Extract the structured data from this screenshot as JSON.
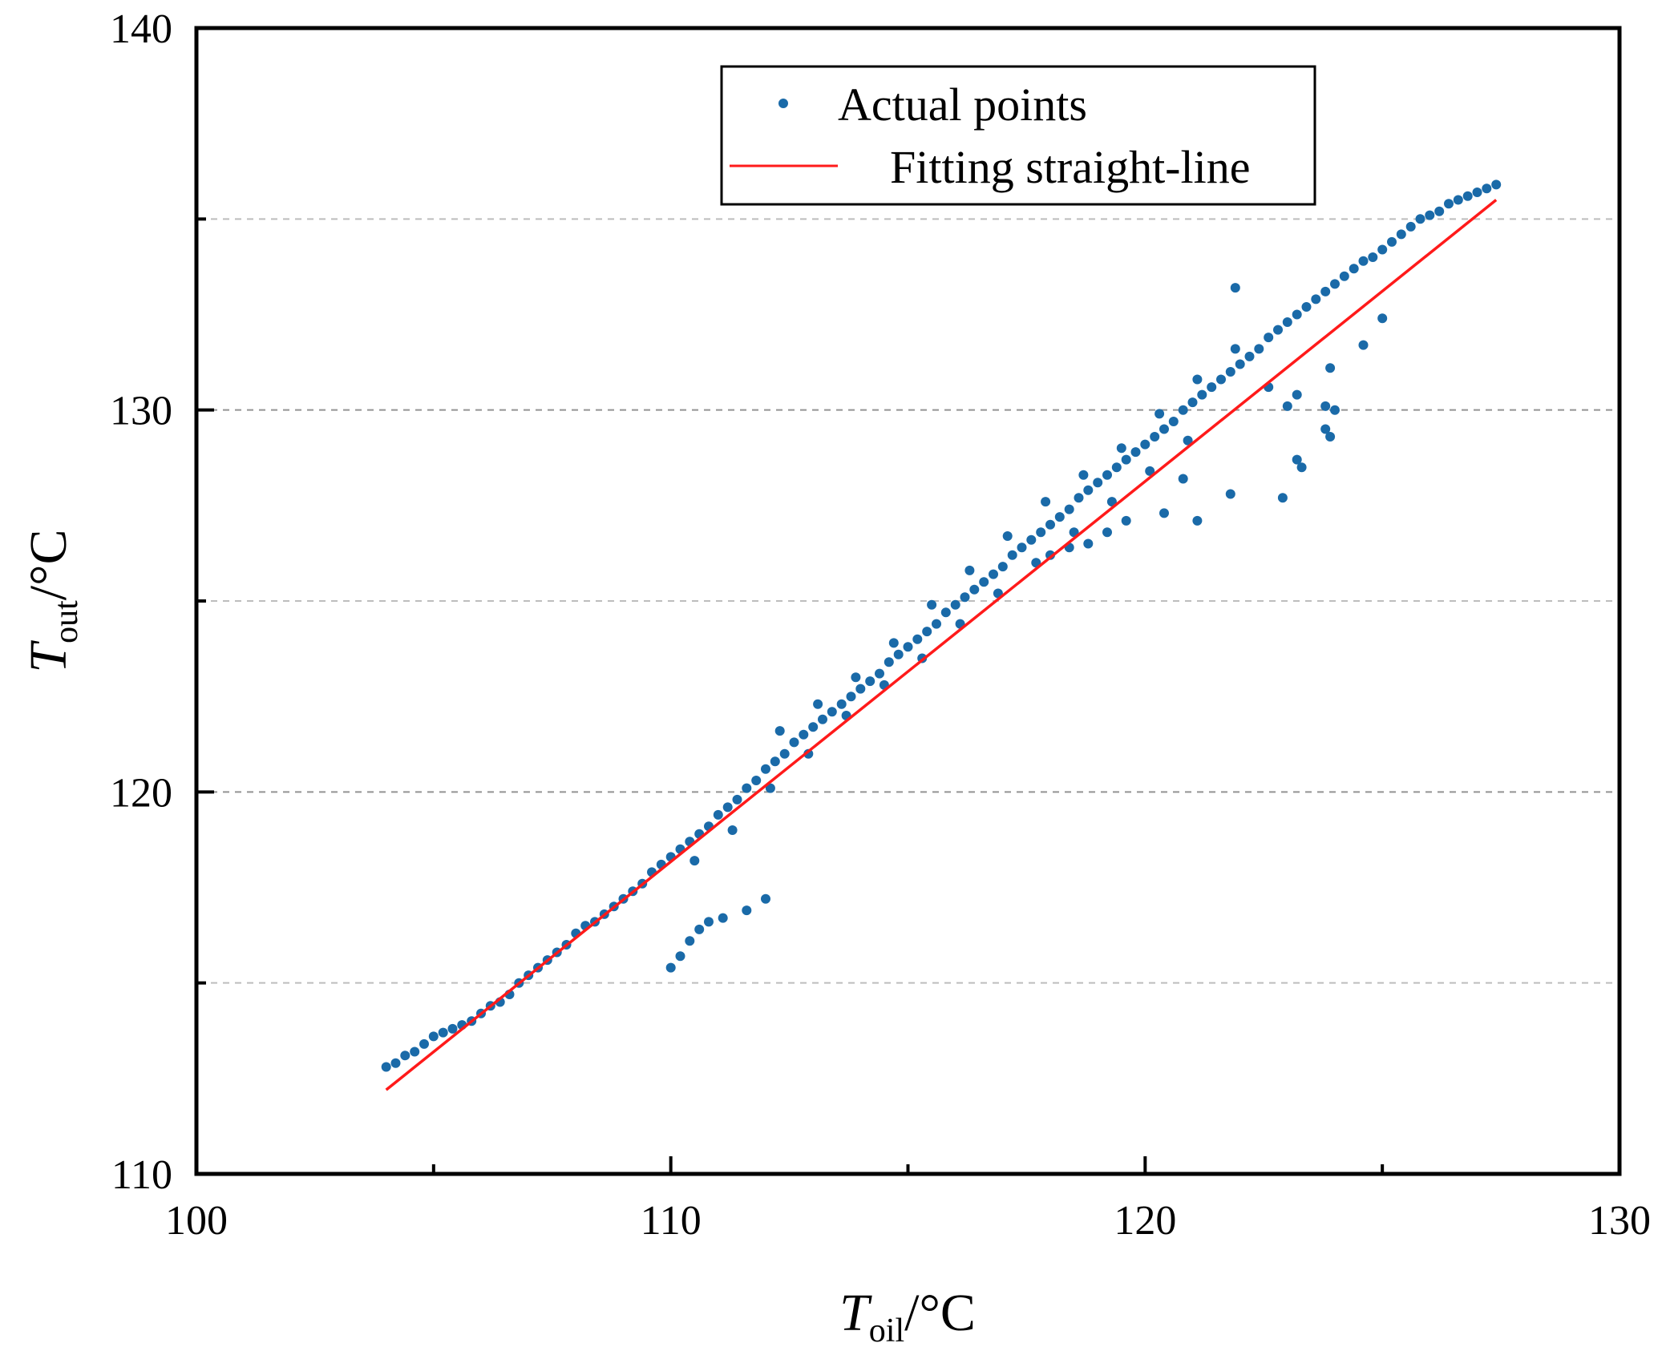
{
  "chart_data": {
    "type": "scatter",
    "title": "",
    "xlabel": {
      "symbol": "T",
      "subscript": "oil",
      "unit": "/°C"
    },
    "ylabel": {
      "symbol": "T",
      "subscript": "out",
      "unit": "/°C"
    },
    "xlim": [
      100,
      130
    ],
    "ylim": [
      110,
      140
    ],
    "x_ticks": [
      100,
      110,
      120,
      130
    ],
    "y_ticks": [
      110,
      120,
      130,
      140
    ],
    "x_minor_ticks": [
      105,
      115,
      125
    ],
    "y_minor_ticks": [
      115,
      125,
      135
    ],
    "y_gridlines": [
      115,
      120,
      125,
      130,
      135
    ],
    "legend": {
      "position": "top-center",
      "entries": [
        "Actual  points",
        "Fitting straight-line"
      ]
    },
    "colors": {
      "points": "#1a6aa8",
      "fit_line": "#ff1a1a",
      "grid": "#888888"
    },
    "series": [
      {
        "name": "Actual  points",
        "kind": "scatter",
        "points": [
          [
            104.0,
            112.8
          ],
          [
            104.2,
            112.9
          ],
          [
            104.4,
            113.1
          ],
          [
            104.6,
            113.2
          ],
          [
            104.8,
            113.4
          ],
          [
            105.0,
            113.6
          ],
          [
            105.2,
            113.7
          ],
          [
            105.4,
            113.8
          ],
          [
            105.6,
            113.9
          ],
          [
            105.8,
            114.0
          ],
          [
            106.0,
            114.2
          ],
          [
            106.2,
            114.4
          ],
          [
            106.4,
            114.5
          ],
          [
            106.6,
            114.7
          ],
          [
            106.8,
            115.0
          ],
          [
            107.0,
            115.2
          ],
          [
            107.2,
            115.4
          ],
          [
            107.4,
            115.6
          ],
          [
            107.6,
            115.8
          ],
          [
            107.8,
            116.0
          ],
          [
            108.0,
            116.3
          ],
          [
            108.2,
            116.5
          ],
          [
            108.4,
            116.6
          ],
          [
            108.6,
            116.8
          ],
          [
            108.8,
            117.0
          ],
          [
            109.0,
            117.2
          ],
          [
            109.2,
            117.4
          ],
          [
            109.4,
            117.6
          ],
          [
            109.6,
            117.9
          ],
          [
            109.8,
            118.1
          ],
          [
            110.0,
            118.3
          ],
          [
            110.2,
            118.5
          ],
          [
            110.4,
            118.7
          ],
          [
            110.6,
            118.9
          ],
          [
            110.8,
            119.1
          ],
          [
            111.0,
            119.4
          ],
          [
            111.2,
            119.6
          ],
          [
            111.4,
            119.8
          ],
          [
            111.6,
            120.1
          ],
          [
            111.8,
            120.3
          ],
          [
            112.0,
            120.6
          ],
          [
            112.2,
            120.8
          ],
          [
            112.4,
            121.0
          ],
          [
            112.6,
            121.3
          ],
          [
            112.8,
            121.5
          ],
          [
            113.0,
            121.7
          ],
          [
            113.2,
            121.9
          ],
          [
            113.4,
            122.1
          ],
          [
            113.6,
            122.3
          ],
          [
            113.8,
            122.5
          ],
          [
            114.0,
            122.7
          ],
          [
            114.2,
            122.9
          ],
          [
            114.4,
            123.1
          ],
          [
            114.6,
            123.4
          ],
          [
            114.8,
            123.6
          ],
          [
            115.0,
            123.8
          ],
          [
            115.2,
            124.0
          ],
          [
            115.4,
            124.2
          ],
          [
            115.6,
            124.4
          ],
          [
            115.8,
            124.7
          ],
          [
            116.0,
            124.9
          ],
          [
            116.2,
            125.1
          ],
          [
            116.4,
            125.3
          ],
          [
            116.6,
            125.5
          ],
          [
            116.8,
            125.7
          ],
          [
            117.0,
            125.9
          ],
          [
            117.2,
            126.2
          ],
          [
            117.4,
            126.4
          ],
          [
            117.6,
            126.6
          ],
          [
            117.8,
            126.8
          ],
          [
            118.0,
            127.0
          ],
          [
            118.2,
            127.2
          ],
          [
            118.4,
            127.4
          ],
          [
            118.6,
            127.7
          ],
          [
            118.8,
            127.9
          ],
          [
            119.0,
            128.1
          ],
          [
            119.2,
            128.3
          ],
          [
            119.4,
            128.5
          ],
          [
            119.6,
            128.7
          ],
          [
            119.8,
            128.9
          ],
          [
            120.0,
            129.1
          ],
          [
            120.2,
            129.3
          ],
          [
            120.4,
            129.5
          ],
          [
            120.6,
            129.7
          ],
          [
            120.8,
            130.0
          ],
          [
            121.0,
            130.2
          ],
          [
            121.2,
            130.4
          ],
          [
            121.4,
            130.6
          ],
          [
            121.6,
            130.8
          ],
          [
            121.8,
            131.0
          ],
          [
            122.0,
            131.2
          ],
          [
            122.2,
            131.4
          ],
          [
            122.4,
            131.6
          ],
          [
            122.6,
            131.9
          ],
          [
            122.8,
            132.1
          ],
          [
            123.0,
            132.3
          ],
          [
            123.2,
            132.5
          ],
          [
            123.4,
            132.7
          ],
          [
            123.6,
            132.9
          ],
          [
            123.8,
            133.1
          ],
          [
            124.0,
            133.3
          ],
          [
            124.2,
            133.5
          ],
          [
            124.4,
            133.7
          ],
          [
            124.6,
            133.9
          ],
          [
            124.8,
            134.0
          ],
          [
            125.0,
            134.2
          ],
          [
            125.2,
            134.4
          ],
          [
            125.4,
            134.6
          ],
          [
            125.6,
            134.8
          ],
          [
            125.8,
            135.0
          ],
          [
            126.0,
            135.1
          ],
          [
            126.2,
            135.2
          ],
          [
            126.4,
            135.4
          ],
          [
            126.6,
            135.5
          ],
          [
            126.8,
            135.6
          ],
          [
            127.0,
            135.7
          ],
          [
            127.2,
            135.8
          ],
          [
            127.4,
            135.9
          ],
          [
            110.5,
            118.2
          ],
          [
            111.3,
            119.0
          ],
          [
            112.1,
            120.1
          ],
          [
            112.9,
            121.0
          ],
          [
            113.7,
            122.0
          ],
          [
            114.5,
            122.8
          ],
          [
            115.3,
            123.5
          ],
          [
            116.1,
            124.4
          ],
          [
            116.9,
            125.2
          ],
          [
            117.7,
            126.0
          ],
          [
            118.5,
            126.8
          ],
          [
            119.3,
            127.6
          ],
          [
            120.1,
            128.4
          ],
          [
            120.9,
            129.2
          ],
          [
            112.3,
            121.6
          ],
          [
            113.1,
            122.3
          ],
          [
            113.9,
            123.0
          ],
          [
            114.7,
            123.9
          ],
          [
            115.5,
            124.9
          ],
          [
            116.3,
            125.8
          ],
          [
            117.1,
            126.7
          ],
          [
            117.9,
            127.6
          ],
          [
            118.7,
            128.3
          ],
          [
            119.5,
            129.0
          ],
          [
            120.3,
            129.9
          ],
          [
            121.1,
            130.8
          ],
          [
            121.9,
            131.6
          ],
          [
            118.0,
            126.2
          ],
          [
            118.4,
            126.4
          ],
          [
            118.8,
            126.5
          ],
          [
            119.2,
            126.8
          ],
          [
            119.6,
            127.1
          ],
          [
            120.4,
            127.3
          ],
          [
            120.8,
            128.2
          ],
          [
            110.0,
            115.4
          ],
          [
            110.2,
            115.7
          ],
          [
            110.4,
            116.1
          ],
          [
            110.6,
            116.4
          ],
          [
            110.8,
            116.6
          ],
          [
            111.1,
            116.7
          ],
          [
            111.6,
            116.9
          ],
          [
            112.0,
            117.2
          ],
          [
            121.9,
            133.2
          ],
          [
            122.6,
            130.6
          ],
          [
            123.0,
            130.1
          ],
          [
            123.2,
            130.4
          ],
          [
            123.8,
            130.1
          ],
          [
            124.0,
            130.0
          ],
          [
            123.8,
            129.5
          ],
          [
            123.9,
            129.3
          ],
          [
            123.2,
            128.7
          ],
          [
            123.3,
            128.5
          ],
          [
            122.9,
            127.7
          ],
          [
            121.8,
            127.8
          ],
          [
            121.1,
            127.1
          ],
          [
            123.9,
            131.1
          ],
          [
            124.6,
            131.7
          ],
          [
            125.0,
            132.4
          ]
        ]
      },
      {
        "name": "Fitting straight-line",
        "kind": "line",
        "x": [
          104.0,
          127.4
        ],
        "y": [
          112.2,
          135.5
        ]
      }
    ]
  }
}
